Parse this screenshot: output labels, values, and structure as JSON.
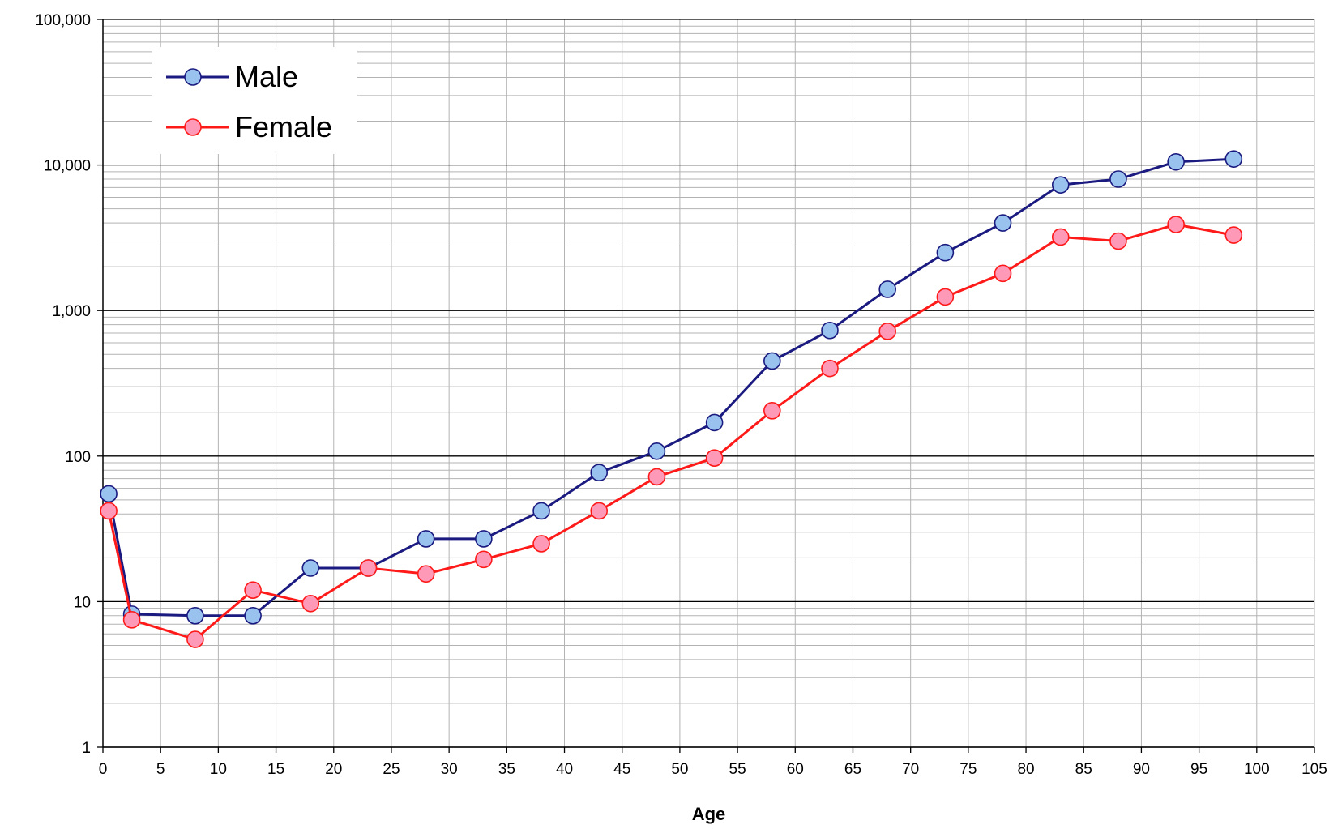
{
  "chart_data": {
    "type": "line",
    "title": "",
    "xlabel": "Age",
    "ylabel": "",
    "x_scale": "linear",
    "y_scale": "log",
    "xlim": [
      0,
      105
    ],
    "ylim": [
      1,
      100000
    ],
    "x_ticks": [
      0,
      5,
      10,
      15,
      20,
      25,
      30,
      35,
      40,
      45,
      50,
      55,
      60,
      65,
      70,
      75,
      80,
      85,
      90,
      95,
      100,
      105
    ],
    "y_ticks": [
      1,
      10,
      100,
      1000,
      10000,
      100000
    ],
    "x_tick_labels": [
      "0",
      "5",
      "10",
      "15",
      "20",
      "25",
      "30",
      "35",
      "40",
      "45",
      "50",
      "55",
      "60",
      "65",
      "70",
      "75",
      "80",
      "85",
      "90",
      "95",
      "100",
      "105"
    ],
    "y_tick_labels": [
      "1",
      "10",
      "100",
      "1,000",
      "10,000",
      "100,000"
    ],
    "grid": true,
    "legend_position": "top-left",
    "x": [
      0.5,
      2.5,
      8,
      13,
      18,
      23,
      28,
      33,
      38,
      43,
      48,
      53,
      58,
      63,
      68,
      73,
      78,
      83,
      88,
      93,
      98
    ],
    "series": [
      {
        "name": "Male",
        "line_color": "#1a1a80",
        "marker_color": "#99c2ee",
        "values": [
          55,
          8.2,
          8,
          8,
          17,
          17,
          27,
          27,
          42,
          77,
          108,
          170,
          450,
          730,
          1400,
          2500,
          4000,
          7300,
          8000,
          10500,
          11000
        ]
      },
      {
        "name": "Female",
        "line_color": "#ff1a1a",
        "marker_color": "#ff99b8",
        "values": [
          42,
          7.5,
          5.5,
          12,
          9.7,
          17,
          15.5,
          19.5,
          25,
          42,
          72,
          97,
          205,
          400,
          720,
          1240,
          1800,
          3200,
          3000,
          3900,
          3300
        ]
      }
    ]
  }
}
